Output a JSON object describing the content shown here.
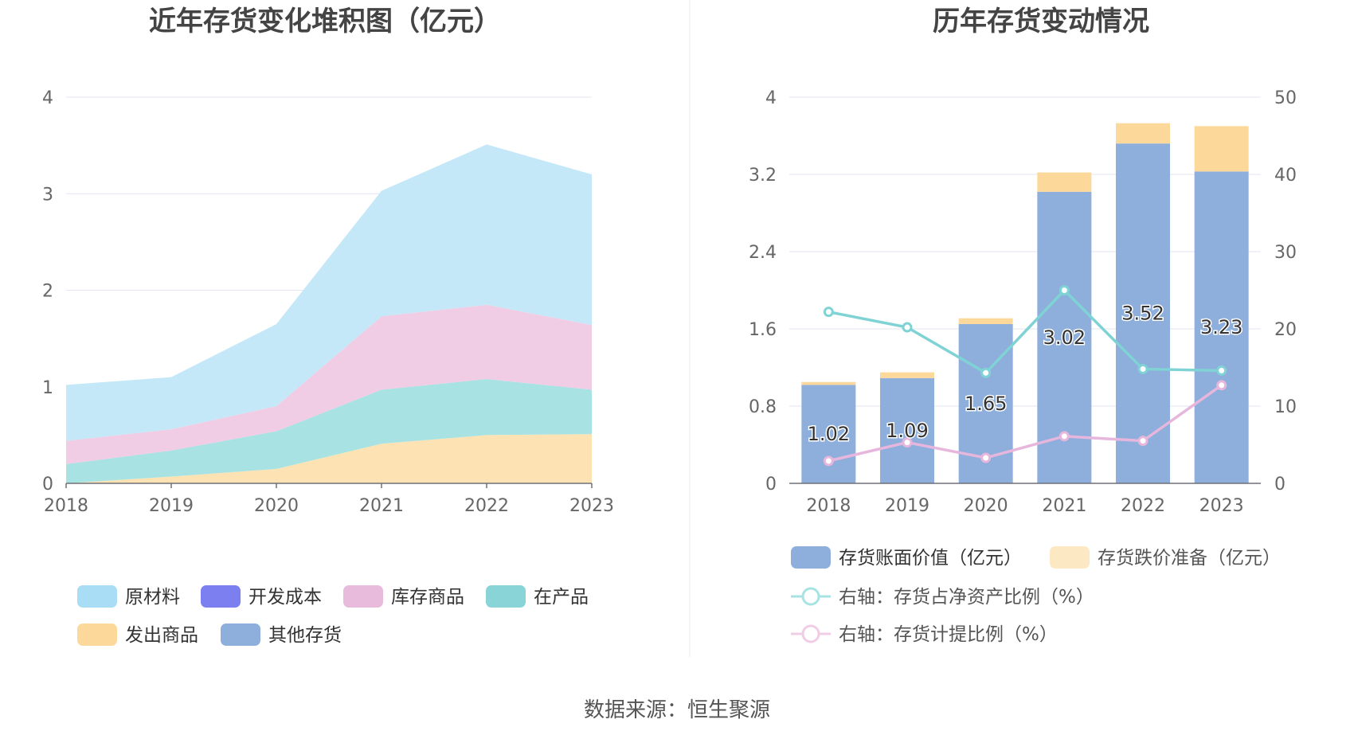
{
  "source": "数据来源：恒生聚源",
  "chart_data": [
    {
      "type": "area",
      "stacked": true,
      "title": "近年存货变化堆积图（亿元）",
      "categories": [
        "2018",
        "2019",
        "2020",
        "2021",
        "2022",
        "2023"
      ],
      "ylim": [
        0,
        4
      ],
      "yticks": [
        "0",
        "1",
        "2",
        "3",
        "4"
      ],
      "grid": true,
      "legend_position": "bottom",
      "series": [
        {
          "name": "发出商品",
          "color": "#fde3b4",
          "values": [
            0.0,
            0.07,
            0.15,
            0.41,
            0.5,
            0.51
          ]
        },
        {
          "name": "其他存货",
          "color": "#8eaedc",
          "values": [
            0.0,
            0.0,
            0.0,
            0.0,
            0.0,
            0.0
          ]
        },
        {
          "name": "在产品",
          "color": "#a8e2e3",
          "values": [
            0.2,
            0.27,
            0.39,
            0.56,
            0.58,
            0.46
          ]
        },
        {
          "name": "开发成本",
          "color": "#7b7ff0",
          "values": [
            0.0,
            0.0,
            0.0,
            0.0,
            0.0,
            0.0
          ]
        },
        {
          "name": "库存商品",
          "color": "#f0cde5",
          "values": [
            0.24,
            0.22,
            0.26,
            0.76,
            0.77,
            0.67
          ]
        },
        {
          "name": "原材料",
          "color": "#c5e8f9",
          "values": [
            0.58,
            0.54,
            0.85,
            1.3,
            1.66,
            1.56
          ]
        }
      ],
      "legend": [
        {
          "name": "原材料",
          "color": "#a9dcf5"
        },
        {
          "name": "开发成本",
          "color": "#7b7ff0"
        },
        {
          "name": "库存商品",
          "color": "#e8badb"
        },
        {
          "name": "在产品",
          "color": "#88d4d6"
        },
        {
          "name": "发出商品",
          "color": "#fdd89b"
        },
        {
          "name": "其他存货",
          "color": "#8eaedc"
        }
      ]
    },
    {
      "type": "bar",
      "title": "历年存货变动情况",
      "categories": [
        "2018",
        "2019",
        "2020",
        "2021",
        "2022",
        "2023"
      ],
      "ylim": [
        0,
        4
      ],
      "yticks": [
        "0",
        "0.8",
        "1.6",
        "2.4",
        "3.2",
        "4"
      ],
      "y2lim": [
        0,
        50
      ],
      "y2ticks": [
        "0",
        "10",
        "20",
        "30",
        "40",
        "50"
      ],
      "grid": true,
      "legend_position": "bottom",
      "bar_series": [
        {
          "name": "存货账面价值（亿元）",
          "color": "#8eaedc",
          "values": [
            1.02,
            1.09,
            1.65,
            3.02,
            3.52,
            3.23
          ],
          "labels": [
            "1.02",
            "1.09",
            "1.65",
            "3.02",
            "3.52",
            "3.23"
          ]
        },
        {
          "name": "存货跌价准备（亿元）",
          "color": "#fdd89b",
          "values": [
            0.03,
            0.06,
            0.06,
            0.2,
            0.21,
            0.47
          ]
        }
      ],
      "line_series": [
        {
          "name": "右轴：存货占净资产比例（%）",
          "color": "#7fd3d4",
          "values": [
            22.2,
            20.2,
            14.3,
            25.0,
            14.8,
            14.6
          ]
        },
        {
          "name": "右轴：存货计提比例（%）",
          "color": "#e6b6dc",
          "values": [
            2.9,
            5.3,
            3.3,
            6.1,
            5.5,
            12.7
          ]
        }
      ],
      "legend": [
        {
          "name": "存货账面价值（亿元）",
          "color": "#8eaedc",
          "kind": "bar",
          "dim": false
        },
        {
          "name": "存货跌价准备（亿元）",
          "color": "#fde8c4",
          "kind": "bar",
          "dim": true
        },
        {
          "name": "右轴：存货占净资产比例（%）",
          "color": "#a8e2e3",
          "kind": "line",
          "dim": true
        },
        {
          "name": "右轴：存货计提比例（%）",
          "color": "#f0cde5",
          "kind": "line",
          "dim": true
        }
      ]
    }
  ]
}
